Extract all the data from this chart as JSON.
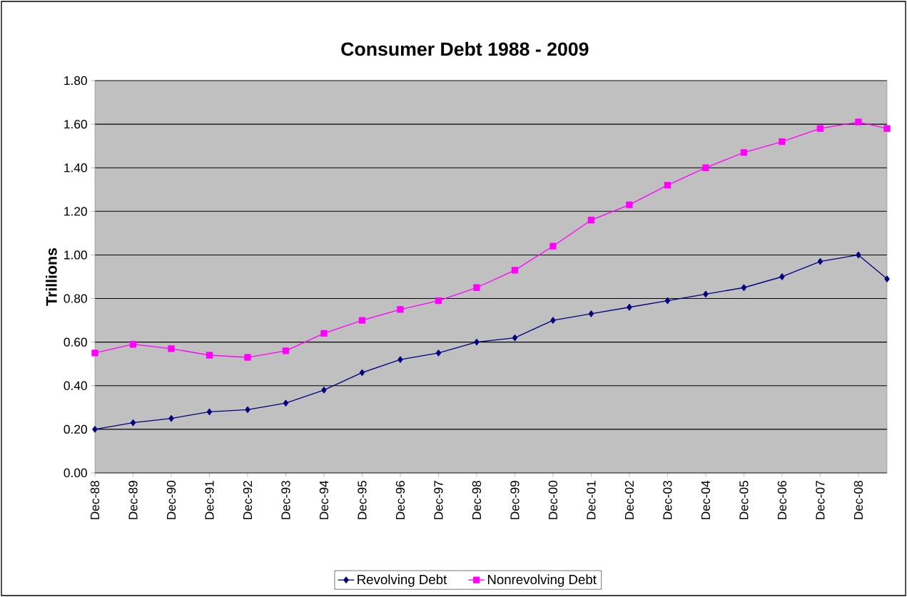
{
  "chart_data": {
    "type": "line",
    "title": "Consumer Debt 1988 - 2009",
    "ylabel": "Trillions",
    "x": [
      "1988-12",
      "1989-12",
      "1990-12",
      "1991-12",
      "1992-12",
      "1993-12",
      "1994-12",
      "1995-12",
      "1996-12",
      "1997-12",
      "1998-12",
      "1999-12",
      "2000-12",
      "2001-12",
      "2002-12",
      "2003-12",
      "2004-12",
      "2005-12",
      "2006-12",
      "2007-12",
      "2008-12",
      "2009-09"
    ],
    "series": [
      {
        "name": "Revolving Debt",
        "color": "#000080",
        "marker": "diamond",
        "values": [
          0.2,
          0.23,
          0.25,
          0.28,
          0.29,
          0.32,
          0.38,
          0.46,
          0.52,
          0.55,
          0.6,
          0.62,
          0.7,
          0.73,
          0.76,
          0.79,
          0.82,
          0.85,
          0.9,
          0.97,
          1.0,
          0.89
        ]
      },
      {
        "name": "Nonrevolving Debt",
        "color": "#ff00ff",
        "marker": "square",
        "values": [
          0.55,
          0.59,
          0.57,
          0.54,
          0.53,
          0.56,
          0.64,
          0.7,
          0.75,
          0.79,
          0.85,
          0.93,
          1.04,
          1.16,
          1.23,
          1.32,
          1.4,
          1.47,
          1.52,
          1.58,
          1.61,
          1.58
        ]
      }
    ],
    "xlim": [
      "1988-12",
      "2009-09"
    ],
    "xticks": [
      {
        "value": "1988-12",
        "label": "Dec-88"
      },
      {
        "value": "1989-12",
        "label": "Dec-89"
      },
      {
        "value": "1990-12",
        "label": "Dec-90"
      },
      {
        "value": "1991-12",
        "label": "Dec-91"
      },
      {
        "value": "1992-12",
        "label": "Dec-92"
      },
      {
        "value": "1993-12",
        "label": "Dec-93"
      },
      {
        "value": "1994-12",
        "label": "Dec-94"
      },
      {
        "value": "1995-12",
        "label": "Dec-95"
      },
      {
        "value": "1996-12",
        "label": "Dec-96"
      },
      {
        "value": "1997-12",
        "label": "Dec-97"
      },
      {
        "value": "1998-12",
        "label": "Dec-98"
      },
      {
        "value": "1999-12",
        "label": "Dec-99"
      },
      {
        "value": "2000-12",
        "label": "Dec-00"
      },
      {
        "value": "2001-12",
        "label": "Dec-01"
      },
      {
        "value": "2002-12",
        "label": "Dec-02"
      },
      {
        "value": "2003-12",
        "label": "Dec-03"
      },
      {
        "value": "2004-12",
        "label": "Dec-04"
      },
      {
        "value": "2005-12",
        "label": "Dec-05"
      },
      {
        "value": "2006-12",
        "label": "Dec-06"
      },
      {
        "value": "2007-12",
        "label": "Dec-07"
      },
      {
        "value": "2008-12",
        "label": "Dec-08"
      }
    ],
    "ylim": [
      0,
      1.8
    ],
    "yticks": [
      {
        "value": 0,
        "label": "0.00"
      },
      {
        "value": 0.2,
        "label": "0.20"
      },
      {
        "value": 0.4,
        "label": "0.40"
      },
      {
        "value": 0.6,
        "label": "0.60"
      },
      {
        "value": 0.8,
        "label": "0.80"
      },
      {
        "value": 1.0,
        "label": "1.00"
      },
      {
        "value": 1.2,
        "label": "1.20"
      },
      {
        "value": 1.4,
        "label": "1.40"
      },
      {
        "value": 1.6,
        "label": "1.60"
      },
      {
        "value": 1.8,
        "label": "1.80"
      }
    ],
    "grid": "y",
    "legend": "bottom"
  }
}
